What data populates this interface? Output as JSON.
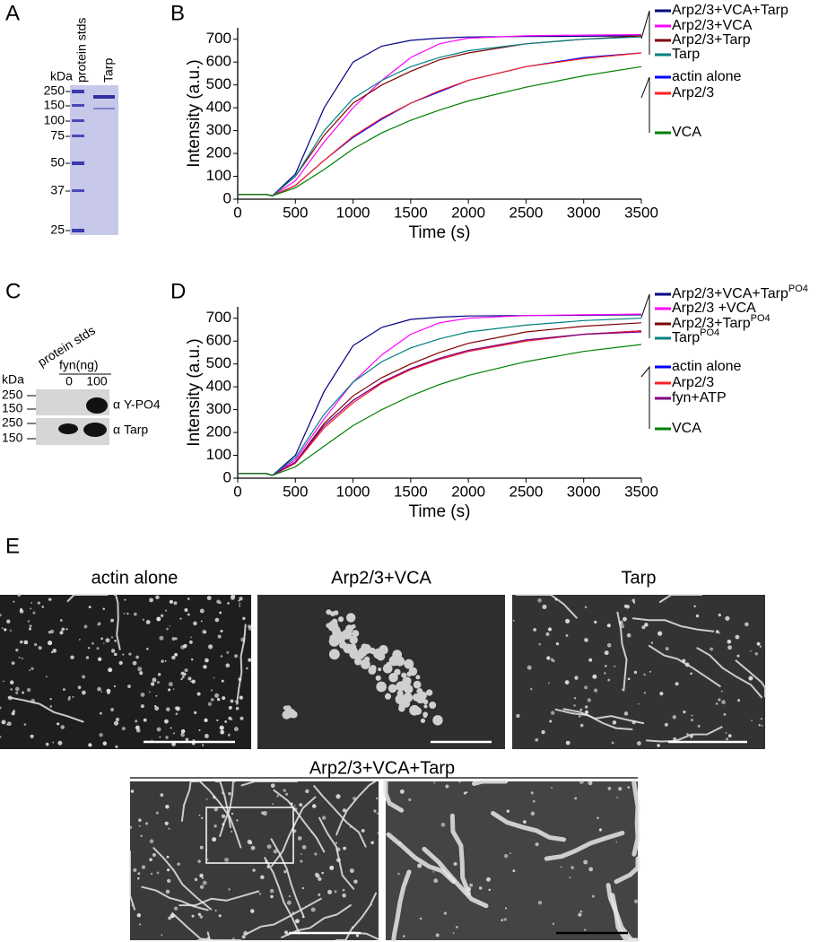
{
  "panel_labels": [
    "A",
    "B",
    "C",
    "D",
    "E"
  ],
  "gel_a": {
    "unit": "kDa",
    "lane_labels": [
      "protein stds",
      "Tarp"
    ],
    "markers": [
      250,
      150,
      100,
      75,
      50,
      37,
      25
    ]
  },
  "blot_c": {
    "lane_label": "protein stds",
    "group_label": "fyn(ng)",
    "lanes": [
      0,
      100
    ],
    "unit": "kDa",
    "markers_top": [
      250,
      150
    ],
    "markers_bottom": [
      250,
      150
    ],
    "antibodies": [
      "α Y-PO4",
      "α Tarp"
    ]
  },
  "chart_data": [
    {
      "type": "line",
      "x_label": "Time (s)",
      "y_label": "Intensity (a.u.)",
      "x": [
        0,
        250,
        300,
        500,
        750,
        1000,
        1250,
        1500,
        1750,
        2000,
        2500,
        3000,
        3500
      ],
      "xlim": [
        0,
        3500
      ],
      "ylim": [
        0,
        750
      ],
      "xticks": [
        0,
        500,
        1000,
        1500,
        2000,
        2500,
        3000,
        3500
      ],
      "yticks": [
        0,
        100,
        200,
        300,
        400,
        500,
        600,
        700
      ],
      "series": [
        {
          "name": "Arp2/3+VCA+Tarp",
          "color": "#000080",
          "values": [
            20,
            20,
            15,
            110,
            400,
            600,
            670,
            695,
            705,
            710,
            712,
            713,
            715
          ]
        },
        {
          "name": "Arp2/3+VCA",
          "color": "#ff00ff",
          "values": [
            20,
            20,
            15,
            80,
            250,
            400,
            520,
            620,
            680,
            705,
            715,
            718,
            720
          ]
        },
        {
          "name": "Arp2/3+Tarp",
          "color": "#800000",
          "values": [
            20,
            20,
            15,
            100,
            280,
            420,
            500,
            560,
            610,
            640,
            680,
            700,
            715
          ]
        },
        {
          "name": "Tarp",
          "color": "#008080",
          "values": [
            20,
            20,
            15,
            100,
            300,
            440,
            520,
            580,
            620,
            650,
            680,
            700,
            710
          ]
        },
        {
          "name": "actin alone",
          "color": "#0000ff",
          "values": [
            20,
            20,
            15,
            60,
            170,
            270,
            350,
            420,
            470,
            520,
            580,
            620,
            640
          ]
        },
        {
          "name": "Arp2/3",
          "color": "#ff2020",
          "values": [
            20,
            20,
            15,
            60,
            170,
            275,
            355,
            420,
            475,
            520,
            580,
            615,
            640
          ]
        },
        {
          "name": "VCA",
          "color": "#008000",
          "values": [
            20,
            20,
            15,
            50,
            130,
            220,
            290,
            345,
            390,
            430,
            490,
            540,
            580
          ]
        }
      ]
    },
    {
      "type": "line",
      "x_label": "Time (s)",
      "y_label": "Intensity (a.u.)",
      "x": [
        0,
        250,
        300,
        500,
        750,
        1000,
        1250,
        1500,
        1750,
        2000,
        2500,
        3000,
        3500
      ],
      "xlim": [
        0,
        3500
      ],
      "ylim": [
        0,
        750
      ],
      "xticks": [
        0,
        500,
        1000,
        1500,
        2000,
        2500,
        3000,
        3500
      ],
      "yticks": [
        0,
        100,
        200,
        300,
        400,
        500,
        600,
        700
      ],
      "series": [
        {
          "name": "Arp2/3+VCA+Tarp",
          "name_superscript": "PO4",
          "color": "#000080",
          "values": [
            20,
            20,
            12,
            100,
            380,
            580,
            660,
            695,
            705,
            710,
            712,
            713,
            715
          ]
        },
        {
          "name": "Arp2/3 +VCA",
          "color": "#ff00ff",
          "values": [
            20,
            20,
            12,
            80,
            260,
            420,
            540,
            630,
            680,
            700,
            712,
            715,
            718
          ]
        },
        {
          "name": "Arp2/3+Tarp",
          "name_superscript": "PO4",
          "color": "#800000",
          "values": [
            20,
            20,
            12,
            70,
            240,
            360,
            440,
            500,
            550,
            590,
            640,
            665,
            680
          ]
        },
        {
          "name": "Tarp",
          "name_superscript": "PO4",
          "color": "#008080",
          "values": [
            20,
            20,
            12,
            90,
            280,
            420,
            510,
            570,
            610,
            640,
            670,
            690,
            700
          ]
        },
        {
          "name": "actin alone",
          "color": "#0000ff",
          "values": [
            20,
            20,
            12,
            70,
            230,
            340,
            420,
            480,
            520,
            555,
            600,
            630,
            645
          ]
        },
        {
          "name": "Arp2/3",
          "color": "#ff2020",
          "values": [
            20,
            20,
            12,
            65,
            220,
            330,
            415,
            475,
            520,
            555,
            600,
            630,
            645
          ]
        },
        {
          "name": "fyn+ATP",
          "color": "#800080",
          "values": [
            20,
            20,
            12,
            70,
            230,
            340,
            420,
            480,
            525,
            560,
            605,
            630,
            640
          ]
        },
        {
          "name": "VCA",
          "color": "#008000",
          "values": [
            20,
            20,
            12,
            50,
            140,
            230,
            300,
            360,
            410,
            450,
            510,
            555,
            585
          ]
        }
      ]
    }
  ],
  "em": {
    "titles": [
      "actin alone",
      "Arp2/3+VCA",
      "Tarp"
    ],
    "bottom_title": "Arp2/3+VCA+Tarp"
  }
}
